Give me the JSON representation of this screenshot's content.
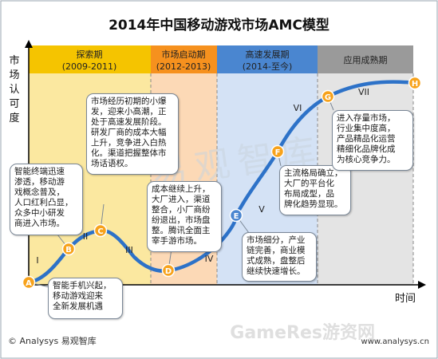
{
  "title": "2014年中国移动游戏市场AMC模型",
  "y_axis_label": [
    "市",
    "场",
    "认",
    "可",
    "度"
  ],
  "x_axis_label": "时间",
  "footer": {
    "source": "© Analysys 易观智库",
    "url": "www.analysys.cn",
    "watermark_text": "易观智库",
    "corner_watermark": "GameRes游资网"
  },
  "colors": {
    "phase1": "#fbe8a0",
    "phase1_header": "#f5c400",
    "phase2": "#fcd9b6",
    "phase2_header": "#f6911e",
    "phase3": "#d4e2f5",
    "phase3_header": "#4a86d0",
    "phase4": "#e4e4e4",
    "phase4_header": "#9a9a9a",
    "curve": "#2d72c8",
    "marker_orange": "#f7a21b",
    "marker_blue": "#4a86d0"
  },
  "phases": [
    {
      "name": "探索期",
      "years": "(2009-2011)"
    },
    {
      "name": "市场启动期",
      "years": "(2012-2013)"
    },
    {
      "name": "高速发展期",
      "years": "(2014-至今)"
    },
    {
      "name": "应用成熟期",
      "years": ""
    }
  ],
  "stage_numerals": [
    "I",
    "II",
    "III",
    "IV",
    "V",
    "VI",
    "VII"
  ],
  "points": [
    {
      "letter": "A",
      "color": "orange"
    },
    {
      "letter": "B",
      "color": "orange"
    },
    {
      "letter": "C",
      "color": "orange"
    },
    {
      "letter": "D",
      "color": "orange"
    },
    {
      "letter": "E",
      "color": "blue"
    },
    {
      "letter": "F",
      "color": "orange"
    },
    {
      "letter": "G",
      "color": "orange"
    },
    {
      "letter": "H",
      "color": "orange"
    }
  ],
  "callouts": {
    "A": "智能手机兴起，\n移动游戏迎来\n全新发展机遇",
    "B": "智能终端迅速\n渗透，移动游\n戏概念普及，\n人口红利凸显，\n众多中小研发\n商进入市场。",
    "C": "市场经历初期的小爆\n发，迎来小高潮，正\n处于高速发展阶段。\n研发厂商的成本大幅\n上升，竞争进入白热\n化。渠道把握整体市\n场话语权。",
    "D": "成本继续上升，\n大厂进入，渠道\n整合，小厂商纷\n纷退出，市场盘\n整。腾讯全面主\n宰手游市场。",
    "E": "市场细分，产业\n链完善，商业模\n式成熟，盘整后\n继续快速增长。",
    "F": "主流格局确立，\n大厂的平台化\n布局成型，品\n牌化趋势显现。",
    "G": "进入存量市场，\n行业集中度高，\n产品精品化运营\n精细化品牌化成\n为核心竞争力。"
  }
}
